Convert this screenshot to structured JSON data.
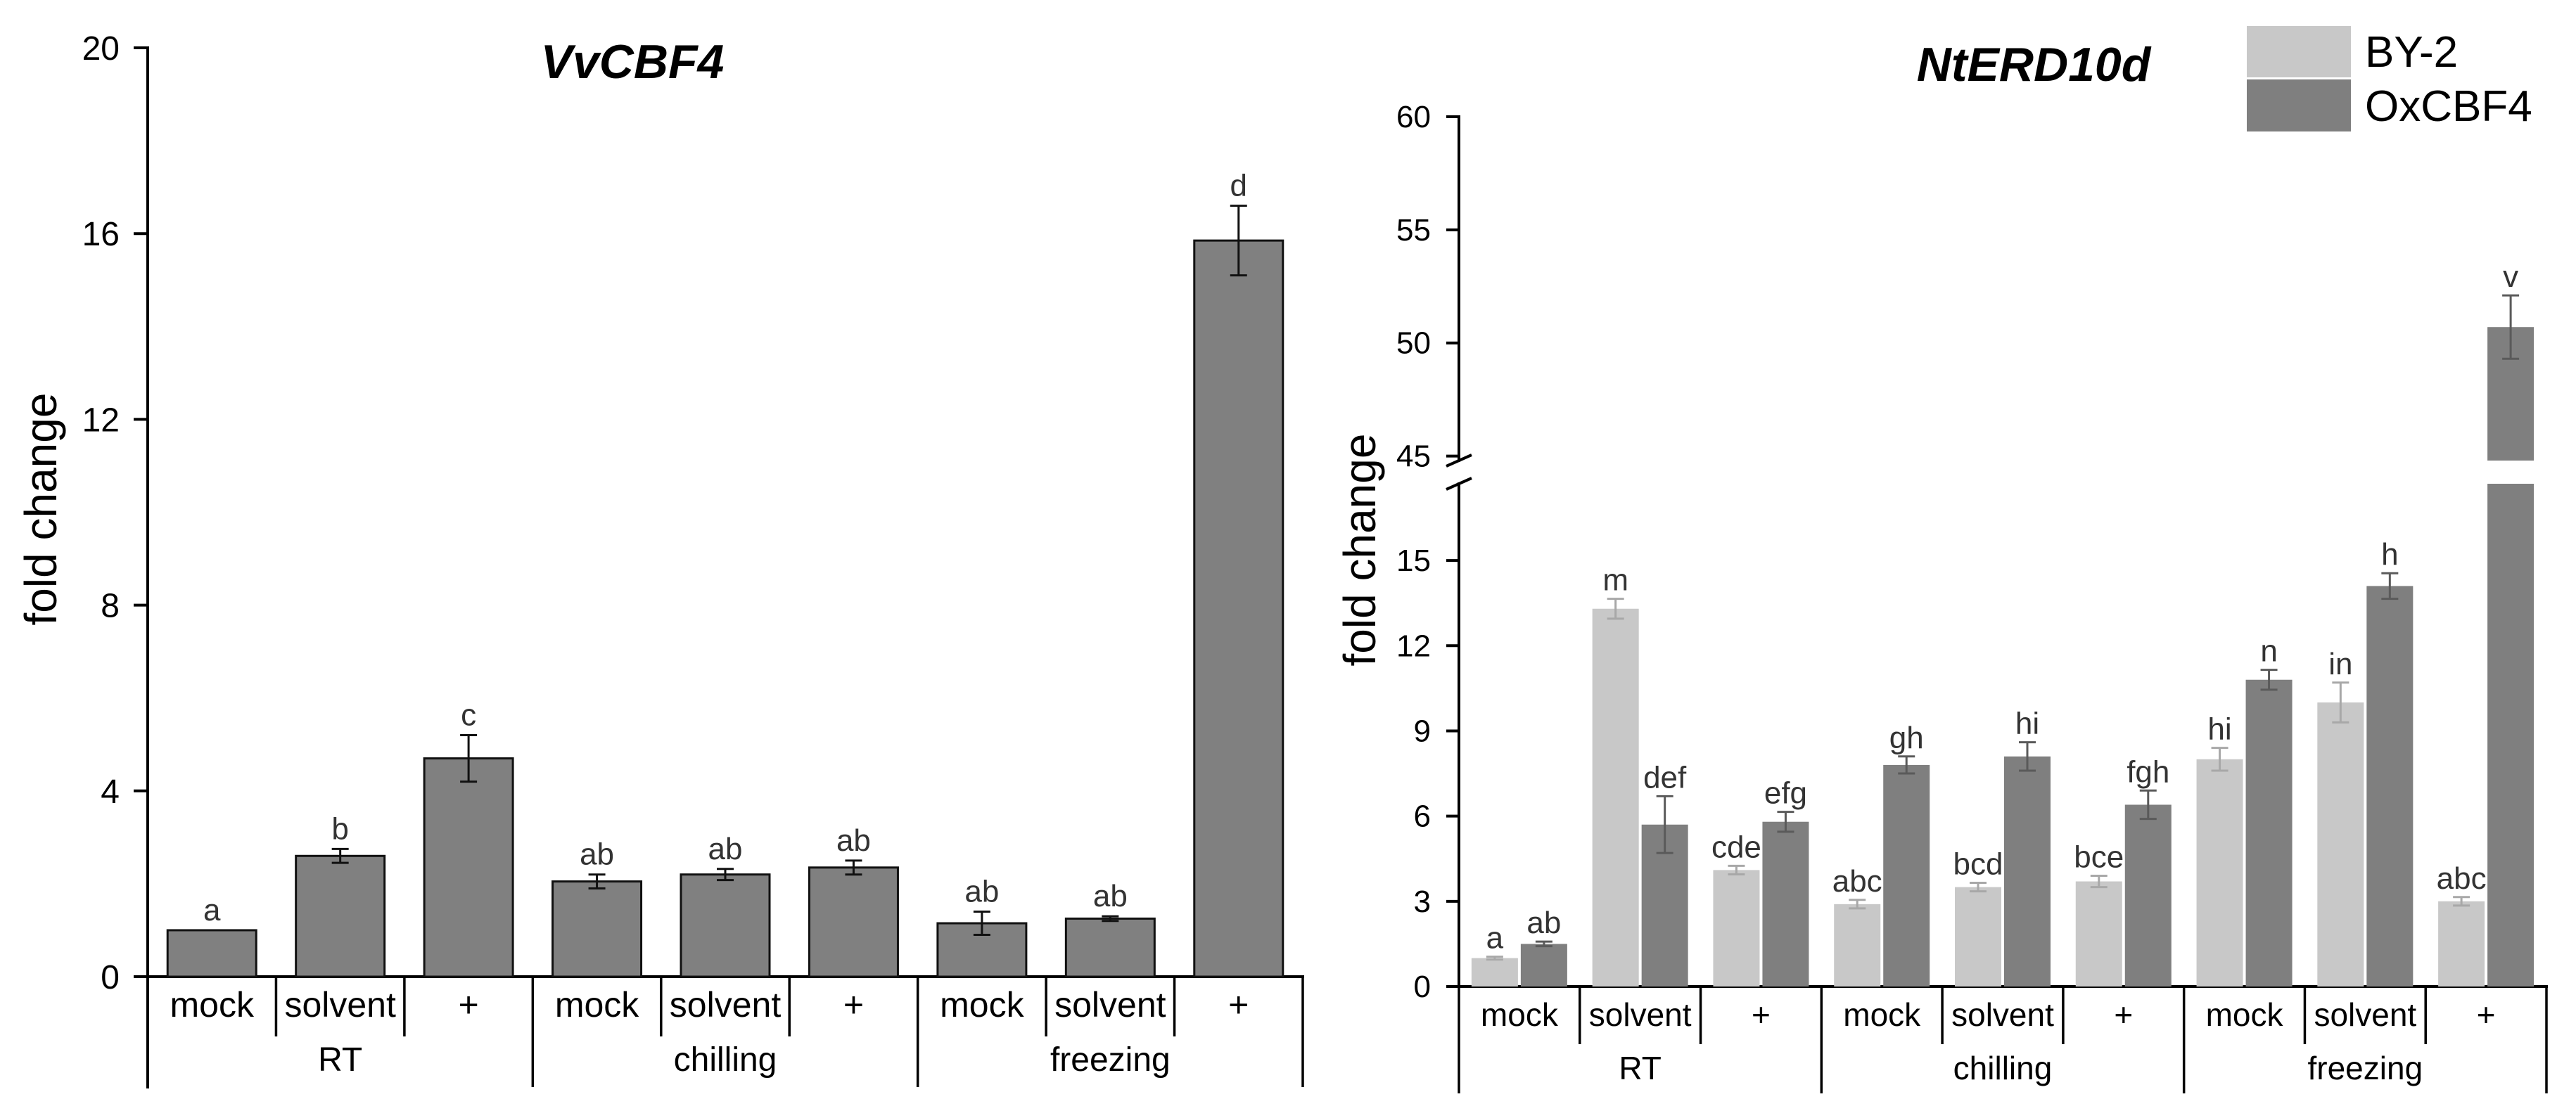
{
  "chart_data": [
    {
      "type": "bar",
      "title": "VvCBF4",
      "ylabel": "fold change",
      "ylim": [
        0,
        20
      ],
      "yticks": [
        0,
        4,
        8,
        12,
        16,
        20
      ],
      "groups": [
        {
          "label": "RT",
          "categories": [
            "mock",
            "solvent",
            "+"
          ]
        },
        {
          "label": "chilling",
          "categories": [
            "mock",
            "solvent",
            "+"
          ]
        },
        {
          "label": "freezing",
          "categories": [
            "mock",
            "solvent",
            "+"
          ]
        }
      ],
      "values": [
        1.0,
        2.6,
        4.7,
        2.05,
        2.2,
        2.35,
        1.15,
        1.25,
        15.85
      ],
      "errors": [
        0,
        0.15,
        0.5,
        0.15,
        0.12,
        0.15,
        0.25,
        0.05,
        0.75
      ],
      "letters": [
        "a",
        "b",
        "c",
        "ab",
        "ab",
        "ab",
        "ab",
        "ab",
        "d"
      ],
      "color": "#808080"
    },
    {
      "type": "bar",
      "title": "NtERD10d",
      "ylabel": "fold change",
      "ylim_lower": [
        0,
        17.7
      ],
      "ylim_upper": [
        44.8,
        60
      ],
      "yticks_lower": [
        0,
        3,
        6,
        9,
        12,
        15
      ],
      "yticks_upper": [
        45,
        50,
        55,
        60
      ],
      "groups": [
        {
          "label": "RT",
          "categories": [
            "mock",
            "solvent",
            "+"
          ]
        },
        {
          "label": "chilling",
          "categories": [
            "mock",
            "solvent",
            "+"
          ]
        },
        {
          "label": "freezing",
          "categories": [
            "mock",
            "solvent",
            "+"
          ]
        }
      ],
      "series": [
        {
          "name": "BY-2",
          "color": "#c8c8c8",
          "values": [
            1.0,
            13.3,
            4.1,
            2.9,
            3.5,
            3.7,
            8.0,
            10.0,
            3.0
          ],
          "errors": [
            0.05,
            0.35,
            0.15,
            0.15,
            0.15,
            0.2,
            0.4,
            0.7,
            0.15
          ],
          "letters": [
            "a",
            "m",
            "cde",
            "abc",
            "bcd",
            "bce",
            "hi",
            "in",
            "abc"
          ]
        },
        {
          "name": "OxCBF4",
          "color": "#7f7f7f",
          "values": [
            1.5,
            5.7,
            5.8,
            7.8,
            8.1,
            6.4,
            10.8,
            14.1,
            50.7
          ],
          "errors": [
            0.08,
            1.0,
            0.35,
            0.3,
            0.5,
            0.5,
            0.35,
            0.45,
            1.4
          ],
          "letters": [
            "ab",
            "def",
            "efg",
            "gh",
            "hi",
            "fgh",
            "n",
            "h",
            "v"
          ]
        }
      ]
    }
  ]
}
